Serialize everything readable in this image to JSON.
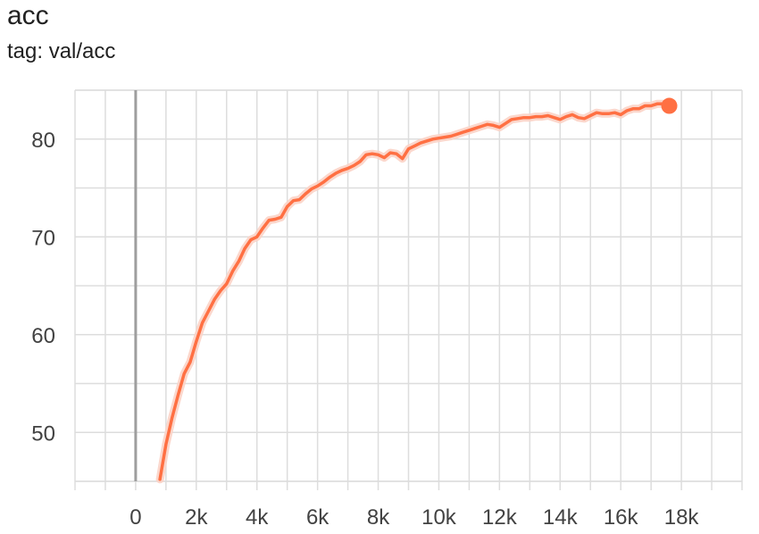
{
  "header": {
    "title": "acc",
    "subtitle": "tag: val/acc"
  },
  "colors": {
    "series": "#ff7043",
    "raw": "#fbd3c6",
    "grid": "#dddddd",
    "zero_line": "#9e9e9e"
  },
  "chart_data": {
    "type": "line",
    "title": "acc",
    "subtitle": "tag: val/acc",
    "xlabel": "",
    "ylabel": "",
    "xlim": [
      -2000,
      20000
    ],
    "ylim": [
      45,
      85
    ],
    "x_ticks": [
      0,
      2000,
      4000,
      6000,
      8000,
      10000,
      12000,
      14000,
      16000,
      18000
    ],
    "x_tick_labels": [
      "0",
      "2k",
      "4k",
      "6k",
      "8k",
      "10k",
      "12k",
      "14k",
      "16k",
      "18k"
    ],
    "y_ticks": [
      50,
      60,
      70,
      80
    ],
    "y_tick_labels": [
      "50",
      "60",
      "70",
      "80"
    ],
    "grid": true,
    "legend": "none",
    "series": [
      {
        "values_x": [
          800,
          1000,
          1200,
          1400,
          1600,
          1800,
          2000,
          2200,
          2400,
          2600,
          2800,
          3000,
          3200,
          3400,
          3600,
          3800,
          4000,
          4200,
          4400,
          4600,
          4800,
          5000,
          5200,
          5400,
          5600,
          5800,
          6000,
          6200,
          6400,
          6600,
          6800,
          7000,
          7200,
          7400,
          7600,
          7800,
          8000,
          8200,
          8400,
          8600,
          8800,
          9000,
          9200,
          9400,
          9600,
          9800,
          10000,
          10200,
          10400,
          10600,
          10800,
          11000,
          11200,
          11400,
          11600,
          11800,
          12000,
          12200,
          12400,
          12600,
          12800,
          13000,
          13200,
          13400,
          13600,
          13800,
          14000,
          14200,
          14400,
          14600,
          14800,
          15000,
          15200,
          15400,
          15600,
          15800,
          16000,
          16200,
          16400,
          16600,
          16800,
          17000,
          17200,
          17400,
          17600
        ],
        "values_y": [
          45.2,
          48.8,
          51.5,
          53.8,
          56.0,
          57.2,
          59.3,
          61.2,
          62.4,
          63.6,
          64.5,
          65.2,
          66.5,
          67.5,
          68.8,
          69.7,
          70.0,
          70.9,
          71.7,
          71.8,
          72.0,
          73.1,
          73.7,
          73.8,
          74.4,
          74.9,
          75.2,
          75.6,
          76.1,
          76.5,
          76.8,
          77.0,
          77.3,
          77.7,
          78.4,
          78.5,
          78.4,
          78.1,
          78.6,
          78.5,
          78.0,
          79.0,
          79.3,
          79.6,
          79.8,
          80.0,
          80.1,
          80.2,
          80.3,
          80.5,
          80.7,
          80.9,
          81.1,
          81.3,
          81.5,
          81.4,
          81.2,
          81.6,
          82.0,
          82.1,
          82.2,
          82.2,
          82.3,
          82.3,
          82.4,
          82.2,
          82.0,
          82.3,
          82.5,
          82.2,
          82.1,
          82.4,
          82.7,
          82.6,
          82.6,
          82.7,
          82.5,
          82.9,
          83.1,
          83.1,
          83.4,
          83.4,
          83.6,
          83.6,
          83.4
        ]
      }
    ]
  }
}
